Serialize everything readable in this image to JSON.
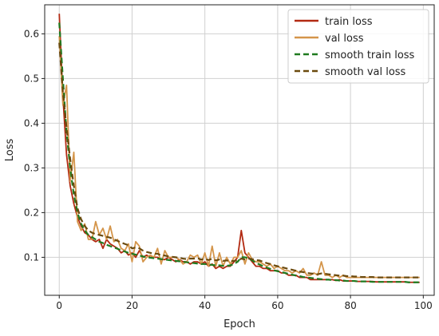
{
  "chart_data": {
    "type": "line",
    "xlabel": "Epoch",
    "ylabel": "Loss",
    "xlim": [
      -4,
      103
    ],
    "ylim": [
      0.015,
      0.665
    ],
    "xticks": [
      0,
      20,
      40,
      60,
      80,
      100
    ],
    "yticks": [
      0.1,
      0.2,
      0.3,
      0.4,
      0.5,
      0.6
    ],
    "xtick_labels": [
      "0",
      "20",
      "40",
      "60",
      "80",
      "100"
    ],
    "ytick_labels": [
      "0.1",
      "0.2",
      "0.3",
      "0.4",
      "0.5",
      "0.6"
    ],
    "grid": true,
    "legend_position": "top-right",
    "colors": {
      "train": "#b22a12",
      "val": "#d4954a",
      "smooth_train": "#1f7a1f",
      "smooth_val": "#6b4a0e"
    },
    "x": [
      0,
      1,
      2,
      3,
      4,
      5,
      6,
      7,
      8,
      9,
      10,
      11,
      12,
      13,
      14,
      15,
      16,
      17,
      18,
      19,
      20,
      21,
      22,
      23,
      24,
      25,
      26,
      27,
      28,
      29,
      30,
      31,
      32,
      33,
      34,
      35,
      36,
      37,
      38,
      39,
      40,
      41,
      42,
      43,
      44,
      45,
      46,
      47,
      48,
      49,
      50,
      51,
      52,
      53,
      54,
      55,
      56,
      57,
      58,
      59,
      60,
      61,
      62,
      63,
      64,
      65,
      66,
      67,
      68,
      69,
      70,
      71,
      72,
      73,
      74,
      75,
      76,
      77,
      78,
      79,
      80,
      81,
      82,
      83,
      84,
      85,
      86,
      87,
      88,
      89,
      90,
      91,
      92,
      93,
      94,
      95,
      96,
      97,
      98,
      99
    ],
    "series": [
      {
        "name": "train loss",
        "style": "solid",
        "values": [
          0.645,
          0.46,
          0.33,
          0.26,
          0.22,
          0.19,
          0.17,
          0.155,
          0.15,
          0.14,
          0.135,
          0.14,
          0.12,
          0.14,
          0.13,
          0.125,
          0.12,
          0.11,
          0.115,
          0.105,
          0.11,
          0.1,
          0.115,
          0.1,
          0.105,
          0.1,
          0.1,
          0.1,
          0.095,
          0.095,
          0.1,
          0.095,
          0.09,
          0.095,
          0.09,
          0.09,
          0.085,
          0.09,
          0.09,
          0.085,
          0.09,
          0.08,
          0.085,
          0.075,
          0.08,
          0.075,
          0.08,
          0.08,
          0.09,
          0.1,
          0.16,
          0.11,
          0.1,
          0.09,
          0.08,
          0.08,
          0.075,
          0.075,
          0.07,
          0.07,
          0.07,
          0.065,
          0.065,
          0.06,
          0.06,
          0.06,
          0.055,
          0.055,
          0.055,
          0.05,
          0.05,
          0.05,
          0.05,
          0.05,
          0.05,
          0.05,
          0.048,
          0.05,
          0.047,
          0.047,
          0.047,
          0.047,
          0.046,
          0.046,
          0.046,
          0.046,
          0.046,
          0.045,
          0.045,
          0.045,
          0.045,
          0.045,
          0.045,
          0.045,
          0.045,
          0.045,
          0.044,
          0.044,
          0.044,
          0.044
        ]
      },
      {
        "name": "val loss",
        "style": "solid",
        "values": [
          0.595,
          0.44,
          0.485,
          0.27,
          0.335,
          0.18,
          0.16,
          0.175,
          0.14,
          0.14,
          0.18,
          0.15,
          0.165,
          0.14,
          0.17,
          0.135,
          0.14,
          0.12,
          0.115,
          0.13,
          0.09,
          0.135,
          0.125,
          0.09,
          0.1,
          0.105,
          0.1,
          0.12,
          0.085,
          0.115,
          0.1,
          0.1,
          0.1,
          0.095,
          0.085,
          0.09,
          0.105,
          0.1,
          0.105,
          0.085,
          0.11,
          0.08,
          0.125,
          0.08,
          0.11,
          0.08,
          0.1,
          0.085,
          0.1,
          0.1,
          0.115,
          0.085,
          0.11,
          0.095,
          0.09,
          0.09,
          0.085,
          0.08,
          0.085,
          0.075,
          0.08,
          0.075,
          0.07,
          0.07,
          0.065,
          0.07,
          0.065,
          0.075,
          0.06,
          0.06,
          0.065,
          0.06,
          0.09,
          0.06,
          0.06,
          0.055,
          0.06,
          0.055,
          0.06,
          0.055,
          0.055,
          0.055,
          0.055,
          0.055,
          0.055,
          0.055,
          0.055,
          0.055,
          0.055,
          0.055,
          0.055,
          0.055,
          0.055,
          0.055,
          0.055,
          0.055,
          0.055,
          0.055,
          0.055,
          0.055
        ]
      },
      {
        "name": "smooth train loss",
        "style": "dashed",
        "values": [
          0.625,
          0.5,
          0.38,
          0.3,
          0.24,
          0.2,
          0.175,
          0.16,
          0.15,
          0.145,
          0.14,
          0.135,
          0.132,
          0.128,
          0.125,
          0.122,
          0.119,
          0.116,
          0.113,
          0.11,
          0.108,
          0.106,
          0.104,
          0.102,
          0.1,
          0.099,
          0.098,
          0.097,
          0.096,
          0.095,
          0.094,
          0.093,
          0.092,
          0.091,
          0.09,
          0.089,
          0.088,
          0.087,
          0.086,
          0.085,
          0.085,
          0.084,
          0.083,
          0.082,
          0.082,
          0.081,
          0.081,
          0.082,
          0.085,
          0.09,
          0.1,
          0.1,
          0.098,
          0.093,
          0.088,
          0.084,
          0.08,
          0.077,
          0.074,
          0.071,
          0.069,
          0.067,
          0.065,
          0.063,
          0.061,
          0.059,
          0.058,
          0.056,
          0.055,
          0.054,
          0.053,
          0.052,
          0.051,
          0.05,
          0.05,
          0.049,
          0.049,
          0.048,
          0.048,
          0.047,
          0.047,
          0.047,
          0.046,
          0.046,
          0.046,
          0.046,
          0.045,
          0.045,
          0.045,
          0.045,
          0.045,
          0.045,
          0.045,
          0.045,
          0.045,
          0.045,
          0.044,
          0.044,
          0.044,
          0.044
        ]
      },
      {
        "name": "smooth val loss",
        "style": "dashed",
        "values": [
          0.58,
          0.47,
          0.39,
          0.32,
          0.26,
          0.21,
          0.185,
          0.17,
          0.16,
          0.155,
          0.152,
          0.15,
          0.148,
          0.146,
          0.144,
          0.14,
          0.137,
          0.133,
          0.13,
          0.127,
          0.12,
          0.122,
          0.12,
          0.115,
          0.112,
          0.11,
          0.108,
          0.108,
          0.104,
          0.104,
          0.102,
          0.101,
          0.1,
          0.099,
          0.097,
          0.096,
          0.097,
          0.097,
          0.098,
          0.095,
          0.097,
          0.094,
          0.097,
          0.093,
          0.095,
          0.092,
          0.093,
          0.091,
          0.092,
          0.093,
          0.097,
          0.095,
          0.097,
          0.096,
          0.094,
          0.093,
          0.09,
          0.087,
          0.085,
          0.082,
          0.08,
          0.078,
          0.076,
          0.074,
          0.072,
          0.07,
          0.068,
          0.067,
          0.065,
          0.064,
          0.063,
          0.062,
          0.064,
          0.063,
          0.062,
          0.061,
          0.06,
          0.059,
          0.059,
          0.058,
          0.058,
          0.057,
          0.057,
          0.056,
          0.056,
          0.056,
          0.056,
          0.055,
          0.055,
          0.055,
          0.055,
          0.055,
          0.055,
          0.055,
          0.055,
          0.055,
          0.055,
          0.055,
          0.055,
          0.055
        ]
      }
    ]
  }
}
